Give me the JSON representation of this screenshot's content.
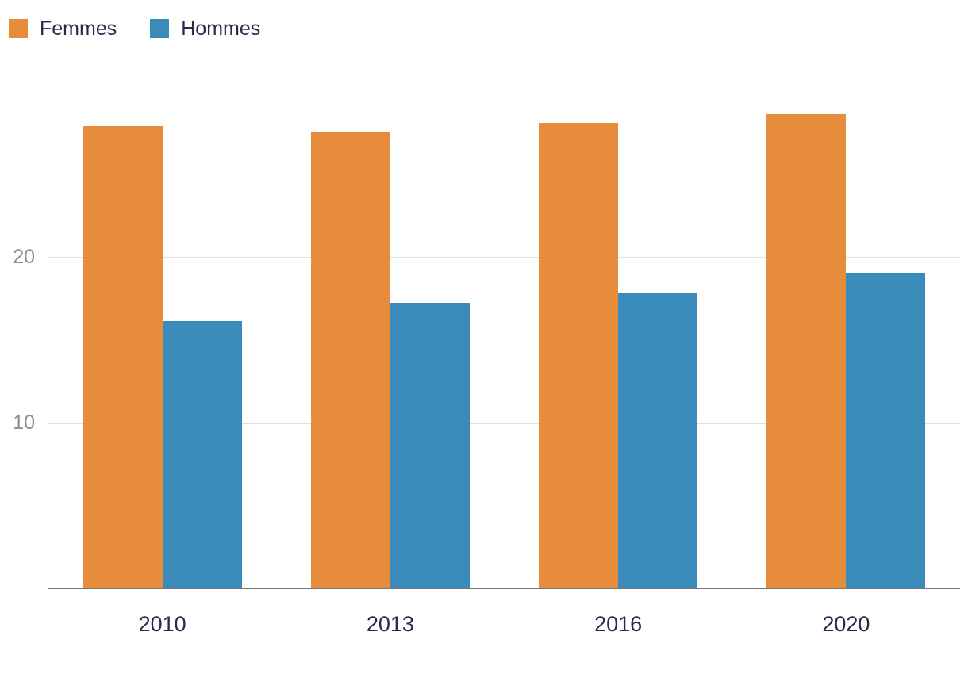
{
  "chart_data": {
    "type": "bar",
    "categories": [
      "2010",
      "2013",
      "2016",
      "2020"
    ],
    "series": [
      {
        "name": "Femmes",
        "color": "#E78C3B",
        "values": [
          28.0,
          27.6,
          28.2,
          28.7
        ]
      },
      {
        "name": "Hommes",
        "color": "#3A8BBA",
        "values": [
          16.2,
          17.3,
          17.9,
          19.1
        ]
      }
    ],
    "title": "",
    "xlabel": "",
    "ylabel": "",
    "ylim": [
      0,
      30
    ],
    "yticks": [
      10,
      20
    ],
    "grid": true,
    "legend_position": "top-left",
    "colors": {
      "background": "#ffffff",
      "grid": "#e0e0e0",
      "axis": "#757575",
      "ytick_label": "#8e8e8e",
      "xtick_label": "#262b4e",
      "legend_text": "#262b4e"
    }
  }
}
